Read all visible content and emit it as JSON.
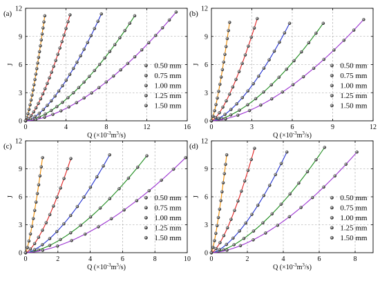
{
  "figure": {
    "y_label": "J",
    "x_label_text": "Q (×10",
    "x_label_exp": "-3",
    "x_label_unit": "m",
    "x_label_unit_exp": "3",
    "x_label_tail": "/s)"
  },
  "colors": {
    "grid": "#9a9a9a",
    "marker_fill": "#222222",
    "marker_highlight": "#dddddd",
    "series": [
      "#f08c00",
      "#e02020",
      "#2030d0",
      "#1a8a1a",
      "#9a30d0"
    ]
  },
  "chart_data": [
    {
      "type": "line",
      "panel": "(a)",
      "xlabel": "Q (×10⁻³m³/s)",
      "ylabel": "J",
      "xlim": [
        0,
        16
      ],
      "ylim": [
        0,
        12
      ],
      "xticks": [
        0,
        4,
        8,
        12,
        16
      ],
      "yticks": [
        0,
        3,
        6,
        9,
        12
      ],
      "grid": true,
      "legend_placement": "bottom-right",
      "series": [
        {
          "name": "0.50 mm",
          "xmax": 1.9,
          "ymax": 11.2,
          "exp": 1.3,
          "n": 20
        },
        {
          "name": "0.75 mm",
          "xmax": 4.4,
          "ymax": 11.3,
          "exp": 1.45,
          "n": 20
        },
        {
          "name": "1.00 mm",
          "xmax": 7.5,
          "ymax": 11.4,
          "exp": 1.55,
          "n": 20
        },
        {
          "name": "1.25 mm",
          "xmax": 10.8,
          "ymax": 11.2,
          "exp": 1.6,
          "n": 20
        },
        {
          "name": "1.50 mm",
          "xmax": 14.9,
          "ymax": 11.6,
          "exp": 1.65,
          "n": 20
        }
      ]
    },
    {
      "type": "line",
      "panel": "(b)",
      "xlabel": "Q (×10⁻³m³/s)",
      "ylabel": "J",
      "xlim": [
        0,
        12
      ],
      "ylim": [
        0,
        12
      ],
      "xticks": [
        0,
        3,
        6,
        9,
        12
      ],
      "yticks": [
        0,
        3,
        6,
        9,
        12
      ],
      "grid": true,
      "legend_placement": "bottom-right",
      "series": [
        {
          "name": "0.50 mm",
          "xmax": 1.35,
          "ymax": 10.5,
          "exp": 1.3,
          "n": 14
        },
        {
          "name": "0.75 mm",
          "xmax": 3.4,
          "ymax": 10.9,
          "exp": 1.45,
          "n": 14
        },
        {
          "name": "1.00 mm",
          "xmax": 5.8,
          "ymax": 10.4,
          "exp": 1.55,
          "n": 14
        },
        {
          "name": "1.25 mm",
          "xmax": 8.3,
          "ymax": 10.4,
          "exp": 1.6,
          "n": 14
        },
        {
          "name": "1.50 mm",
          "xmax": 11.3,
          "ymax": 10.8,
          "exp": 1.65,
          "n": 14
        }
      ]
    },
    {
      "type": "line",
      "panel": "(c)",
      "xlabel": "Q (×10⁻³m³/s)",
      "ylabel": "J",
      "xlim": [
        0,
        10
      ],
      "ylim": [
        0,
        12
      ],
      "xticks": [
        0,
        2,
        4,
        6,
        8,
        10
      ],
      "yticks": [
        0,
        3,
        6,
        9,
        12
      ],
      "grid": true,
      "legend_placement": "bottom-right",
      "series": [
        {
          "name": "0.50 mm",
          "xmax": 1.05,
          "ymax": 10.2,
          "exp": 1.3,
          "n": 12
        },
        {
          "name": "0.75 mm",
          "xmax": 2.8,
          "ymax": 10.1,
          "exp": 1.45,
          "n": 12
        },
        {
          "name": "1.00 mm",
          "xmax": 5.2,
          "ymax": 10.5,
          "exp": 1.55,
          "n": 12
        },
        {
          "name": "1.25 mm",
          "xmax": 7.5,
          "ymax": 10.4,
          "exp": 1.6,
          "n": 12
        },
        {
          "name": "1.50 mm",
          "xmax": 9.9,
          "ymax": 10.2,
          "exp": 1.65,
          "n": 12
        }
      ]
    },
    {
      "type": "line",
      "panel": "(d)",
      "xlabel": "Q (×10⁻³m³/s)",
      "ylabel": "J",
      "xlim": [
        0,
        9
      ],
      "ylim": [
        0,
        12
      ],
      "xticks": [
        0,
        2,
        4,
        6,
        8
      ],
      "yticks": [
        0,
        3,
        6,
        9,
        12
      ],
      "grid": true,
      "legend_placement": "bottom-right",
      "series": [
        {
          "name": "0.50 mm",
          "xmax": 0.85,
          "ymax": 10.5,
          "exp": 1.3,
          "n": 12
        },
        {
          "name": "0.75 mm",
          "xmax": 2.4,
          "ymax": 11.2,
          "exp": 1.45,
          "n": 12
        },
        {
          "name": "1.00 mm",
          "xmax": 4.2,
          "ymax": 10.8,
          "exp": 1.55,
          "n": 12
        },
        {
          "name": "1.25 mm",
          "xmax": 6.3,
          "ymax": 11.3,
          "exp": 1.6,
          "n": 12
        },
        {
          "name": "1.50 mm",
          "xmax": 8.1,
          "ymax": 10.8,
          "exp": 1.65,
          "n": 12
        }
      ]
    }
  ]
}
